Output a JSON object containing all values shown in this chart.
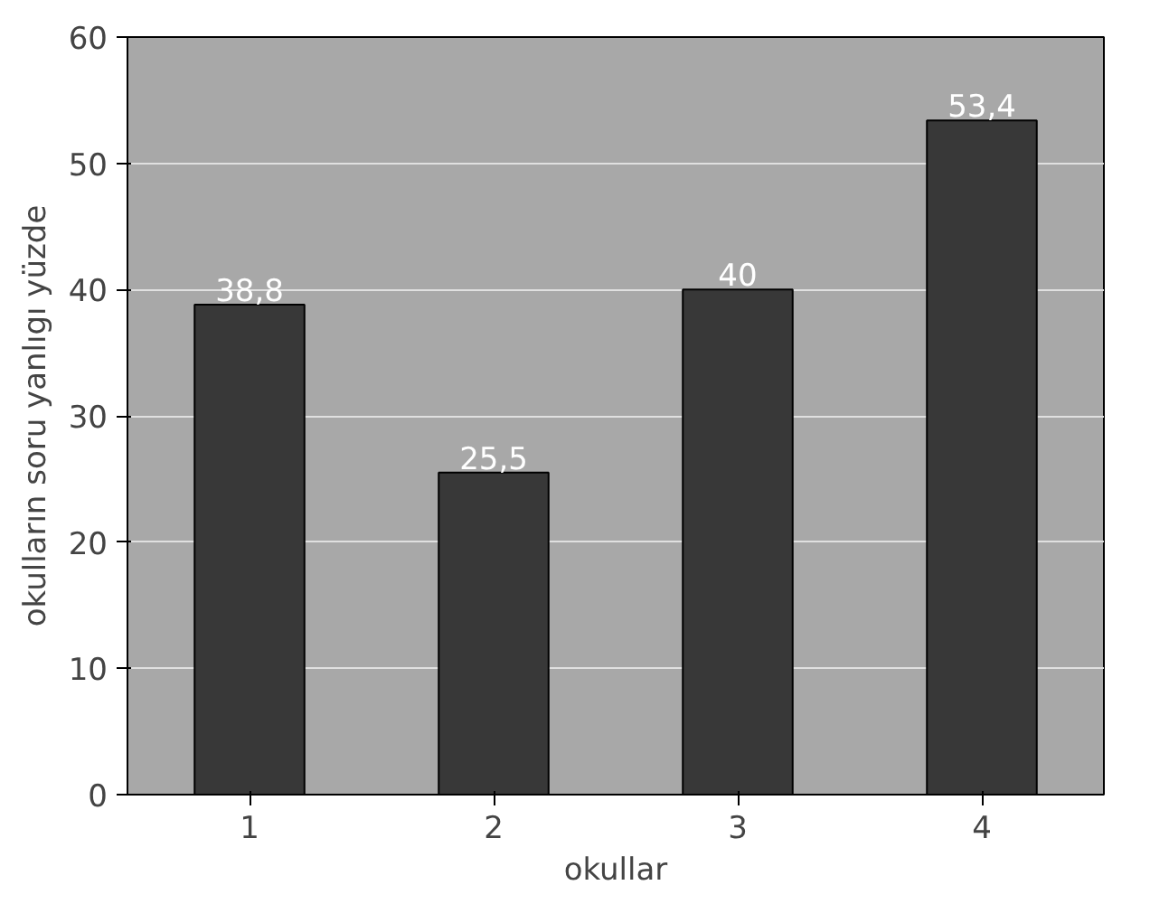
{
  "chart_data": {
    "type": "bar",
    "xlabel": "okullar",
    "ylabel": "okulların soru yanlıgı yüzde",
    "categories": [
      "1",
      "2",
      "3",
      "4"
    ],
    "values": [
      38.8,
      25.5,
      40,
      53.4
    ],
    "value_labels": [
      "38,8",
      "25,5",
      "40",
      "53,4"
    ],
    "color": "#383838",
    "ylim": [
      0,
      60
    ],
    "yticks": [
      0,
      10,
      20,
      30,
      40,
      50,
      60
    ],
    "grid": "y"
  }
}
